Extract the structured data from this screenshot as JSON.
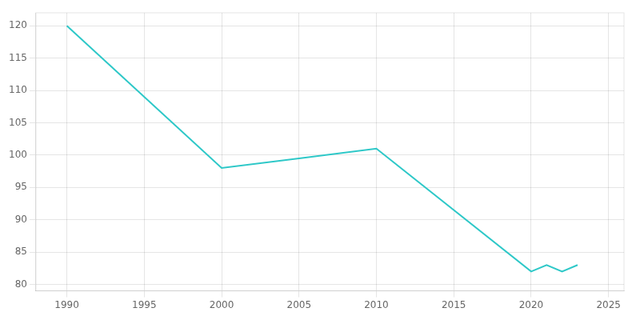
{
  "chart_data": {
    "type": "line",
    "x": [
      1990,
      2000,
      2005,
      2010,
      2020,
      2021,
      2022,
      2023
    ],
    "values": [
      120,
      98,
      99.5,
      101,
      82,
      83,
      82,
      83
    ],
    "color": "#2ec8c8",
    "xlim": [
      1988,
      2026
    ],
    "ylim": [
      79,
      122
    ],
    "xticks": [
      1990,
      1995,
      2000,
      2005,
      2010,
      2015,
      2020,
      2025
    ],
    "yticks": [
      80,
      85,
      90,
      95,
      100,
      105,
      110,
      115,
      120
    ],
    "grid": true
  }
}
